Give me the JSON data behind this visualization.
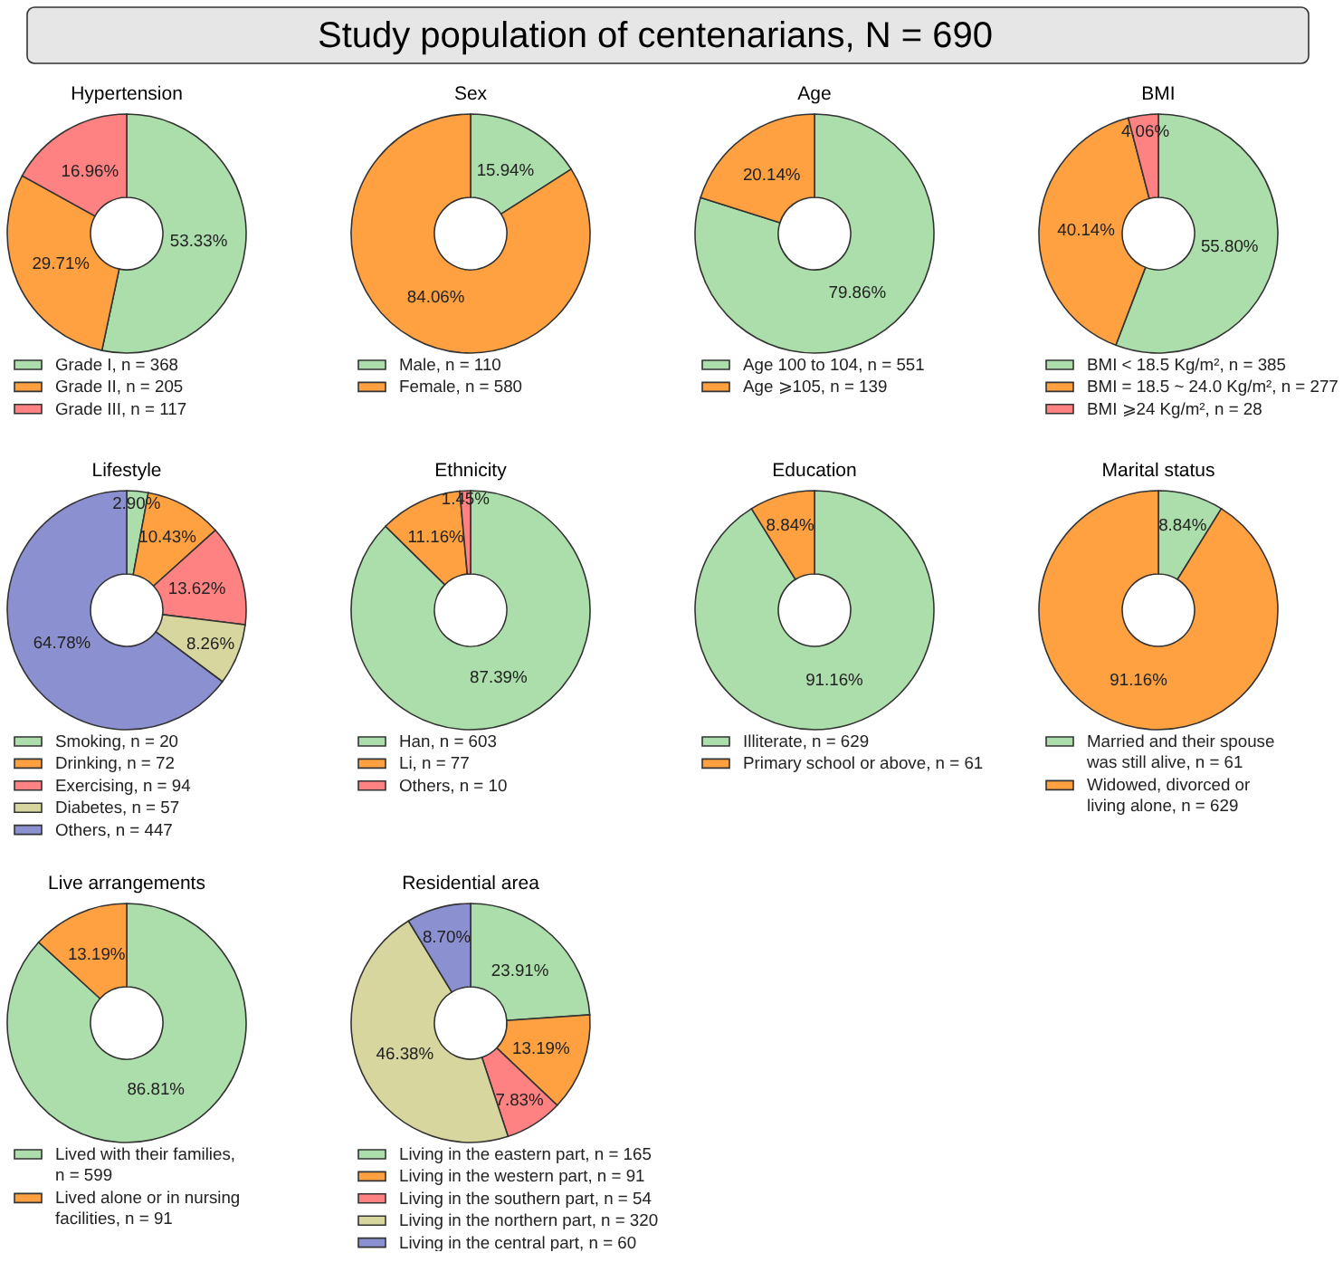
{
  "chart_data": [
    {
      "type": "other",
      "title": "Study population of centenarians, N = 690"
    },
    {
      "type": "donut",
      "title": "Hypertension",
      "categories": [
        "Grade I, n = 368",
        "Grade II, n = 205",
        "Grade III, n = 117"
      ],
      "values": [
        53.33,
        29.71,
        16.96
      ],
      "value_labels": [
        "53.33%",
        "29.71%",
        "16.96%"
      ],
      "colors": [
        "#abdeab",
        "#ffa140",
        "#ff8282"
      ],
      "legend": "bottom"
    },
    {
      "type": "donut",
      "title": "Sex",
      "categories": [
        "Male, n = 110",
        "Female, n = 580"
      ],
      "values": [
        15.94,
        84.06
      ],
      "value_labels": [
        "15.94%",
        "84.06%"
      ],
      "colors": [
        "#abdeab",
        "#ffa140"
      ],
      "legend": "bottom"
    },
    {
      "type": "donut",
      "title": "Age",
      "categories": [
        "Age 100 to 104, n = 551",
        "Age ⩾105, n = 139"
      ],
      "values": [
        79.86,
        20.14
      ],
      "value_labels": [
        "79.86%",
        "20.14%"
      ],
      "colors": [
        "#abdeab",
        "#ffa140"
      ],
      "legend": "bottom"
    },
    {
      "type": "donut",
      "title": "BMI",
      "categories": [
        "BMI < 18.5 Kg/m², n = 385",
        "BMI = 18.5 ~ 24.0 Kg/m², n = 277",
        "BMI ⩾24 Kg/m², n = 28"
      ],
      "values": [
        55.8,
        40.14,
        4.06
      ],
      "value_labels": [
        "55.80%",
        "40.14%",
        "4.06%"
      ],
      "colors": [
        "#abdeab",
        "#ffa140",
        "#ff8282"
      ],
      "legend": "bottom"
    },
    {
      "type": "donut",
      "title": "Lifestyle",
      "categories": [
        "Smoking, n = 20",
        "Drinking, n = 72",
        "Exercising, n = 94",
        "Diabetes, n = 57",
        "Others, n = 447"
      ],
      "values": [
        2.9,
        10.43,
        13.62,
        8.26,
        64.78
      ],
      "value_labels": [
        "2.90%",
        "10.43%",
        "13.62%",
        "8.26%",
        "64.78%"
      ],
      "colors": [
        "#abdeab",
        "#ffa140",
        "#ff8282",
        "#d6d69e",
        "#8b90d0"
      ],
      "legend": "bottom"
    },
    {
      "type": "donut",
      "title": "Ethnicity",
      "categories": [
        "Han, n = 603",
        "Li, n = 77",
        "Others, n = 10"
      ],
      "values": [
        87.39,
        11.16,
        1.45
      ],
      "value_labels": [
        "87.39%",
        "11.16%",
        "1.45%"
      ],
      "colors": [
        "#abdeab",
        "#ffa140",
        "#ff8282"
      ],
      "legend": "bottom"
    },
    {
      "type": "donut",
      "title": "Education",
      "categories": [
        "Illiterate, n = 629",
        "Primary school or above, n = 61"
      ],
      "values": [
        91.16,
        8.84
      ],
      "value_labels": [
        "91.16%",
        "8.84%"
      ],
      "colors": [
        "#abdeab",
        "#ffa140"
      ],
      "legend": "bottom"
    },
    {
      "type": "donut",
      "title": "Marital status",
      "categories": [
        "Married and their spouse\nwas still alive, n = 61",
        "Widowed, divorced or\nliving alone, n = 629"
      ],
      "values": [
        8.84,
        91.16
      ],
      "value_labels": [
        "8.84%",
        "91.16%"
      ],
      "colors": [
        "#abdeab",
        "#ffa140"
      ],
      "legend": "bottom"
    },
    {
      "type": "donut",
      "title": "Live arrangements",
      "categories": [
        "Lived with their families,\nn = 599",
        "Lived alone or in nursing\nfacilities, n = 91"
      ],
      "values": [
        86.81,
        13.19
      ],
      "value_labels": [
        "86.81%",
        "13.19%"
      ],
      "colors": [
        "#abdeab",
        "#ffa140"
      ],
      "legend": "bottom"
    },
    {
      "type": "donut",
      "title": "Residential area",
      "categories": [
        "Living in the eastern part, n = 165",
        "Living in the western part, n = 91",
        "Living in the southern part, n = 54",
        "Living in the northern part, n = 320",
        "Living in the central part, n = 60"
      ],
      "values": [
        23.91,
        13.19,
        7.83,
        46.38,
        8.7
      ],
      "value_labels": [
        "23.91%",
        "13.19%",
        "7.83%",
        "46.38%",
        "8.70%"
      ],
      "colors": [
        "#abdeab",
        "#ffa140",
        "#ff8282",
        "#d6d69e",
        "#8b90d0"
      ],
      "legend": "bottom"
    }
  ]
}
